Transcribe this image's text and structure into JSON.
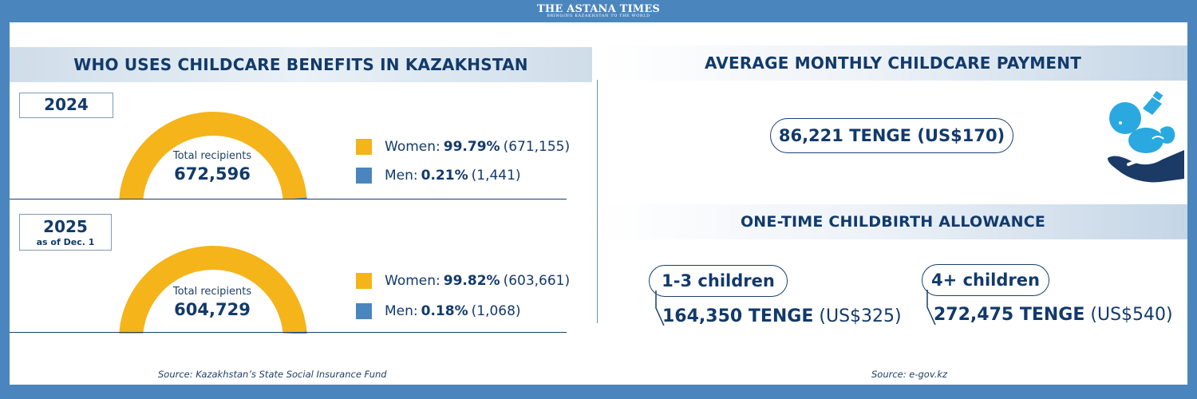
{
  "masthead": {
    "name": "THE ASTANA TIMES",
    "tagline": "BRINGING KAZAKHSTAN TO THE WORLD"
  },
  "left": {
    "title": "WHO USES CHILDCARE BENEFITS IN KAZAKHSTAN",
    "source": "Source: Kazakhstan’s State Social Insurance Fund",
    "years": [
      {
        "year": "2024",
        "note": "",
        "center_label": "Total recipients",
        "total": "672,596",
        "legend": [
          {
            "label": "Women:",
            "pct": "99.79%",
            "count": "(671,155)"
          },
          {
            "label": "Men:",
            "pct": "0.21%",
            "count": "(1,441)"
          }
        ]
      },
      {
        "year": "2025",
        "note": "as of Dec. 1",
        "center_label": "Total recipients",
        "total": "604,729",
        "legend": [
          {
            "label": "Women:",
            "pct": "99.82%",
            "count": "(603,661)"
          },
          {
            "label": "Men:",
            "pct": "0.18%",
            "count": "(1,068)"
          }
        ]
      }
    ]
  },
  "right": {
    "payment_title": "AVERAGE MONTHLY CHILDCARE PAYMENT",
    "payment_value": "86,221 TENGE (US$170)",
    "allowance_title": "ONE-TIME CHILDBIRTH ALLOWANCE",
    "allowances": [
      {
        "label": "1-3 children",
        "amount": "164,350 TENGE",
        "usd": "(US$325)"
      },
      {
        "label": "4+ children",
        "amount": "272,475 TENGE",
        "usd": "(US$540)"
      }
    ],
    "source": "Source: e-gov.kz",
    "icon": "baby-in-hand-icon"
  },
  "colors": {
    "women": "#f4b41a",
    "men": "#4a86bd",
    "navy": "#123a6b",
    "frame": "#4a86bd",
    "baby": "#29a9e0",
    "hand": "#1b3a66"
  },
  "chart_data": [
    {
      "type": "pie",
      "title": "2024",
      "center_label": "Total recipients",
      "total": 672596,
      "categories": [
        "Women",
        "Men"
      ],
      "values": [
        671155,
        1441
      ],
      "percent": [
        99.79,
        0.21
      ]
    },
    {
      "type": "pie",
      "title": "2025 as of Dec. 1",
      "center_label": "Total recipients",
      "total": 604729,
      "categories": [
        "Women",
        "Men"
      ],
      "values": [
        603661,
        1068
      ],
      "percent": [
        99.82,
        0.18
      ]
    }
  ]
}
